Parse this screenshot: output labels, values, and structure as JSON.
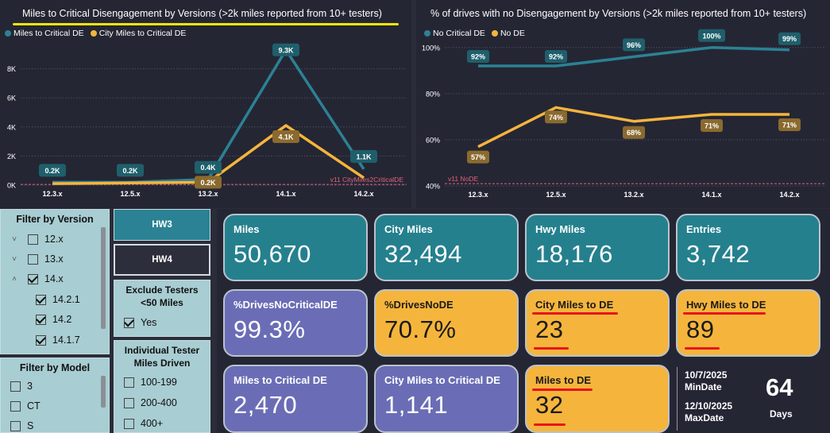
{
  "colors": {
    "teal": "#2b8294",
    "amber": "#f5b53c",
    "ref_line": "#e0637a"
  },
  "chart_data": [
    {
      "type": "line",
      "title": "Miles to Critical Disengagement by Versions (>2k miles reported from 10+ testers)",
      "categories": [
        "12.3.x",
        "12.5.x",
        "13.2.x",
        "14.1.x",
        "14.2.x"
      ],
      "ylim": [
        0,
        10000
      ],
      "yticks": [
        {
          "value": 0,
          "label": "0K"
        },
        {
          "value": 2000,
          "label": "2K"
        },
        {
          "value": 4000,
          "label": "4K"
        },
        {
          "value": 6000,
          "label": "6K"
        },
        {
          "value": 8000,
          "label": "8K"
        }
      ],
      "series": [
        {
          "name": "Miles to Critical DE",
          "color": "#2b8294",
          "values": [
            200,
            200,
            400,
            9300,
            1100
          ],
          "labels": [
            "0.2K",
            "0.2K",
            "0.4K",
            "9.3K",
            "1.1K"
          ]
        },
        {
          "name": "City Miles to Critical DE",
          "color": "#f5b53c",
          "values": [
            100,
            150,
            200,
            4100,
            500
          ],
          "labels": [
            null,
            null,
            "0.2K",
            "4.1K",
            null
          ]
        }
      ],
      "reference_line": {
        "value": 50,
        "label": "v11 CityMiles2CriticalDE"
      }
    },
    {
      "type": "line",
      "title": "% of drives with no Disengagement by Versions (>2k miles reported from 10+ testers)",
      "categories": [
        "12.3.x",
        "12.5.x",
        "13.2.x",
        "14.1.x",
        "14.2.x"
      ],
      "ylim": [
        40,
        102
      ],
      "yticks": [
        {
          "value": 40,
          "label": "40%"
        },
        {
          "value": 60,
          "label": "60%"
        },
        {
          "value": 80,
          "label": "80%"
        },
        {
          "value": 100,
          "label": "100%"
        }
      ],
      "series": [
        {
          "name": "No Critical DE",
          "color": "#2b8294",
          "values": [
            92,
            92,
            96,
            100,
            99
          ],
          "labels": [
            "92%",
            "92%",
            "96%",
            "100%",
            "99%"
          ]
        },
        {
          "name": "No DE",
          "color": "#f5b53c",
          "values": [
            57,
            74,
            68,
            71,
            71
          ],
          "labels": [
            "57%",
            "74%",
            "68%",
            "71%",
            "71%"
          ]
        }
      ],
      "reference_line": {
        "value": 41,
        "label": "v11 NoDE"
      }
    }
  ],
  "filter_version": {
    "title": "Filter by Version",
    "items": [
      {
        "label": "12.x",
        "chevron": "˅",
        "checked": false
      },
      {
        "label": "13.x",
        "chevron": "˅",
        "checked": false
      },
      {
        "label": "14.x",
        "chevron": "˄",
        "checked": true
      },
      {
        "label": "14.2.1",
        "checked": true
      },
      {
        "label": "14.2",
        "checked": true
      },
      {
        "label": "14.1.7",
        "checked": true
      }
    ]
  },
  "filter_model": {
    "title": "Filter by Model",
    "items": [
      {
        "label": "3",
        "checked": false
      },
      {
        "label": "CT",
        "checked": false
      },
      {
        "label": "S",
        "checked": false
      }
    ]
  },
  "hw": {
    "hw3": "HW3",
    "hw4": "HW4"
  },
  "exclude": {
    "title": "Exclude Testers <50 Miles",
    "option": "Yes",
    "checked": true
  },
  "tester_miles": {
    "title": "Individual Tester Miles Driven",
    "options": [
      {
        "label": "100-199",
        "checked": false
      },
      {
        "label": "200-400",
        "checked": false
      },
      {
        "label": "400+",
        "checked": false
      }
    ]
  },
  "kpis": {
    "miles": {
      "label": "Miles",
      "value": "50,670"
    },
    "city_miles": {
      "label": "City Miles",
      "value": "32,494"
    },
    "hwy_miles": {
      "label": "Hwy Miles",
      "value": "18,176"
    },
    "entries": {
      "label": "Entries",
      "value": "3,742"
    },
    "drives_no_critical": {
      "label": "%DrivesNoCriticalDE",
      "value": "99.3%"
    },
    "drives_no_de": {
      "label": "%DrivesNoDE",
      "value": "70.7%"
    },
    "city_to_de": {
      "label": "City Miles to DE",
      "value": "23"
    },
    "hwy_to_de": {
      "label": "Hwy Miles to DE",
      "value": "89"
    },
    "miles_to_critical": {
      "label": "Miles to Critical DE",
      "value": "2,470"
    },
    "city_to_critical": {
      "label": "City Miles to Critical DE",
      "value": "1,141"
    },
    "miles_to_de": {
      "label": "Miles to DE",
      "value": "32"
    }
  },
  "dates": {
    "min_date": "10/7/2025",
    "min_label": "MinDate",
    "max_date": "12/10/2025",
    "max_label": "MaxDate",
    "days": "64",
    "days_label": "Days"
  }
}
